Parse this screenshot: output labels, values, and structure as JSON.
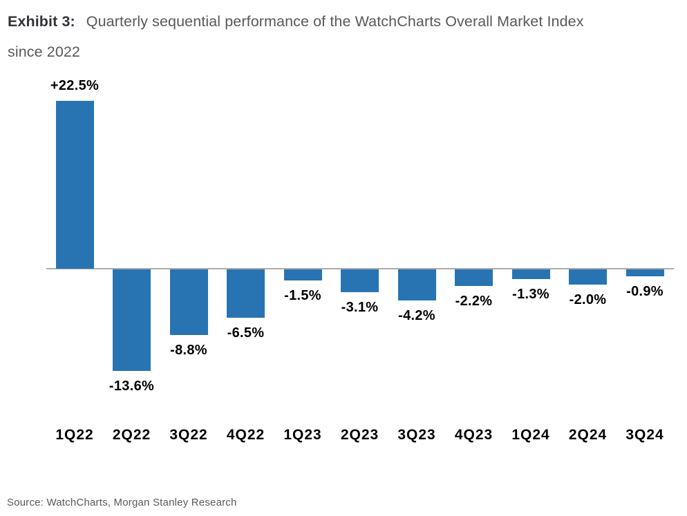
{
  "header": {
    "exhibit_label": "Exhibit 3:",
    "title_line1": "Quarterly sequential performance of the WatchCharts Overall Market Index",
    "title_line2": "since 2022"
  },
  "footer": {
    "source": "Source: WatchCharts, Morgan Stanley Research"
  },
  "colors": {
    "bar": "#2874B2",
    "axis_line": "#ABABAB",
    "title_text": "#58585B",
    "exhibit_label_text": "#33333A",
    "data_label_text": "#000000"
  },
  "chart_data": {
    "type": "bar",
    "title": "Quarterly sequential performance of the WatchCharts Overall Market Index since 2022",
    "categories": [
      "1Q22",
      "2Q22",
      "3Q22",
      "4Q22",
      "1Q23",
      "2Q23",
      "3Q23",
      "4Q23",
      "1Q24",
      "2Q24",
      "3Q24"
    ],
    "values": [
      22.5,
      -13.6,
      -8.8,
      -6.5,
      -1.5,
      -3.1,
      -4.2,
      -2.2,
      -1.3,
      -2.0,
      -0.9
    ],
    "value_labels": [
      "+22.5%",
      "-13.6%",
      "-8.8%",
      "-6.5%",
      "-1.5%",
      "-3.1%",
      "-4.2%",
      "-2.2%",
      "-1.3%",
      "-2.0%",
      "-0.9%"
    ],
    "xlabel": "",
    "ylabel": "",
    "ylim": [
      -16,
      24
    ],
    "baseline": 0,
    "grid": false,
    "legend": false,
    "y_axis_ticks_visible": false,
    "bar_color": "#2874B2",
    "data_label_position": "outside-end"
  }
}
